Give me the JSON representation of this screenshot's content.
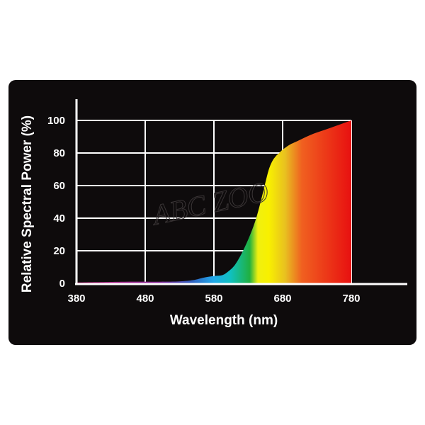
{
  "chart_data": {
    "type": "area",
    "xlabel": "Wavelength (nm)",
    "ylabel": "Relative Spectral Power (%)",
    "xlim": [
      380,
      780
    ],
    "ylim": [
      0,
      100
    ],
    "x_ticks": [
      "380",
      "480",
      "580",
      "680",
      "780"
    ],
    "y_ticks": [
      "0",
      "20",
      "40",
      "60",
      "80",
      "100"
    ],
    "grid": true,
    "fill": "visible spectrum gradient",
    "watermark": "ABC ZOO",
    "series": [
      {
        "x": [
          380,
          450,
          500,
          530,
          550,
          565,
          580,
          592,
          600,
          610,
          620,
          630,
          640,
          648,
          655,
          660,
          665,
          670,
          675,
          680,
          690,
          700,
          720,
          740,
          760,
          780
        ],
        "y": [
          0.5,
          1,
          1,
          1.2,
          2,
          3.5,
          4.5,
          5,
          7,
          11,
          18,
          27,
          38,
          50,
          62,
          70,
          75,
          78,
          80,
          82,
          85,
          87,
          91,
          94,
          97,
          100
        ]
      }
    ],
    "colors": {
      "background": "#0e0b0c",
      "axis": "#ffffff",
      "grid": "#ffffff"
    }
  }
}
